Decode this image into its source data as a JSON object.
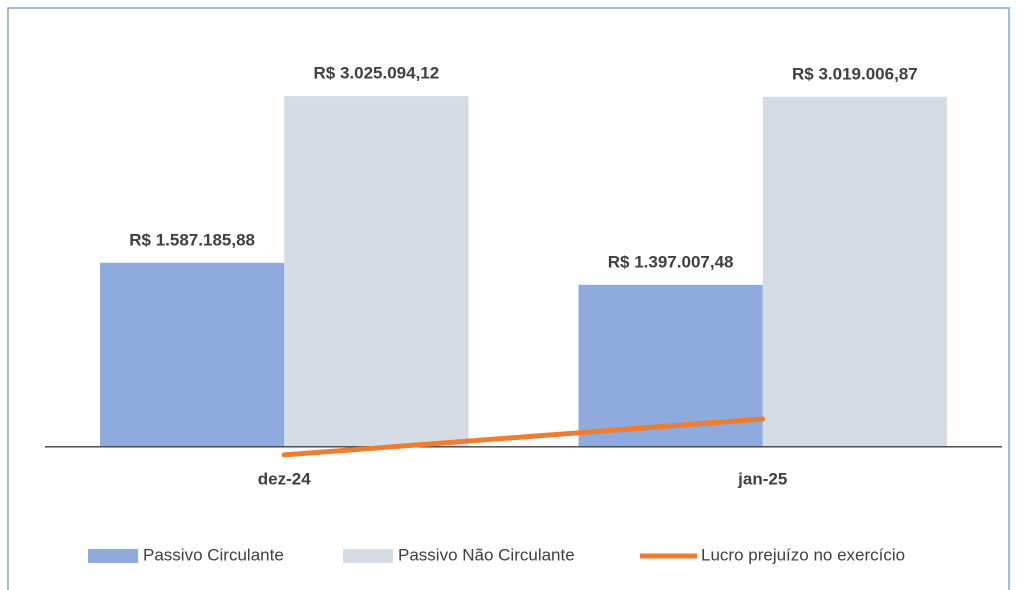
{
  "chart_data": {
    "type": "bar",
    "categories": [
      "dez-24",
      "jan-25"
    ],
    "series": [
      {
        "name": "Passivo Circulante",
        "color": "#8faadc",
        "values": [
          1587185.88,
          1397007.48
        ],
        "value_labels": [
          "R$ 1.587.185,88",
          "R$ 1.397.007,48"
        ]
      },
      {
        "name": "Passivo Não Circulante",
        "color": "#d6dce5",
        "values": [
          3025094.12,
          3019006.87
        ],
        "value_labels": [
          "R$ 3.025.094,12",
          "R$ 3.019.006,87"
        ]
      },
      {
        "name": "Lucro prejuízo no exercício",
        "color": "#ed7d31",
        "type": "line",
        "values": [
          -70000,
          240000
        ]
      }
    ],
    "ylim": [
      -200000,
      3500000
    ],
    "legend": "bottom"
  }
}
